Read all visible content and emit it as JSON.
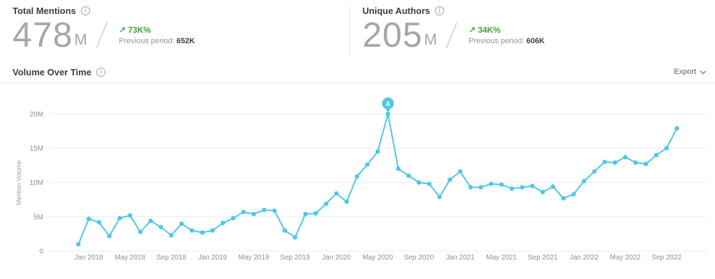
{
  "icons": {
    "info": "i"
  },
  "colors": {
    "line": "#4dc8e8",
    "positive_green": "#3fa142",
    "grid": "#ececec",
    "axis_text": "#8f8f8f",
    "big_number": "#a6a6a6",
    "title_text": "#3d3d3d",
    "divider": "#e3e3e3"
  },
  "stats": [
    {
      "title": "Total Mentions",
      "value": "478",
      "unit": "M",
      "delta_arrow": "↗",
      "delta": "73K%",
      "previous_label": "Previous period:",
      "previous_value": "652K"
    },
    {
      "title": "Unique Authors",
      "value": "205",
      "unit": "M",
      "delta_arrow": "↗",
      "delta": "34K%",
      "previous_label": "Previous period:",
      "previous_value": "606K"
    }
  ],
  "section": {
    "title": "Volume Over Time",
    "export_label": "Export"
  },
  "chart_data": {
    "type": "line",
    "title": "Volume Over Time",
    "xlabel": "",
    "ylabel": "Mention Volume",
    "ylim": [
      0,
      20000000
    ],
    "y_tick_labels": [
      "0",
      "5M",
      "10M",
      "15M",
      "20M"
    ],
    "y_tick_values_millions": [
      0,
      5,
      10,
      15,
      20
    ],
    "x_unit": "month",
    "x_start": "Dec 2017",
    "x_end": "Oct 2022",
    "x_ticks": [
      {
        "index": 1,
        "label": "Jan 2018"
      },
      {
        "index": 5,
        "label": "May 2018"
      },
      {
        "index": 9,
        "label": "Sep 2018"
      },
      {
        "index": 13,
        "label": "Jan 2019"
      },
      {
        "index": 17,
        "label": "May 2019"
      },
      {
        "index": 21,
        "label": "Sep 2019"
      },
      {
        "index": 25,
        "label": "Jan 2020"
      },
      {
        "index": 29,
        "label": "May 2020"
      },
      {
        "index": 33,
        "label": "Sep 2020"
      },
      {
        "index": 37,
        "label": "Jan 2021"
      },
      {
        "index": 41,
        "label": "May 2021"
      },
      {
        "index": 45,
        "label": "Sep 2021"
      },
      {
        "index": 49,
        "label": "Jan 2022"
      },
      {
        "index": 53,
        "label": "May 2022"
      },
      {
        "index": 57,
        "label": "Sep 2022"
      }
    ],
    "series": [
      {
        "name": "Mention Volume",
        "values_millions": [
          1.0,
          4.7,
          4.2,
          2.2,
          4.8,
          5.2,
          2.8,
          4.4,
          3.5,
          2.3,
          4.0,
          3.0,
          2.7,
          3.0,
          4.1,
          4.8,
          5.7,
          5.4,
          6.0,
          5.9,
          3.0,
          2.0,
          5.4,
          5.5,
          6.9,
          8.4,
          7.2,
          10.9,
          12.6,
          14.5,
          20.0,
          12.0,
          11.0,
          10.0,
          9.8,
          7.9,
          10.4,
          11.6,
          9.3,
          9.3,
          9.8,
          9.7,
          9.1,
          9.3,
          9.5,
          8.6,
          9.4,
          7.7,
          8.3,
          10.2,
          11.6,
          13.0,
          12.9,
          13.7,
          12.9,
          12.7,
          14.0,
          15.0,
          17.9
        ]
      }
    ],
    "annotation": {
      "label": "A",
      "index": 30,
      "value_millions": 20.0
    },
    "grid": true,
    "legend": false,
    "line_color": "#4dc8e8"
  }
}
